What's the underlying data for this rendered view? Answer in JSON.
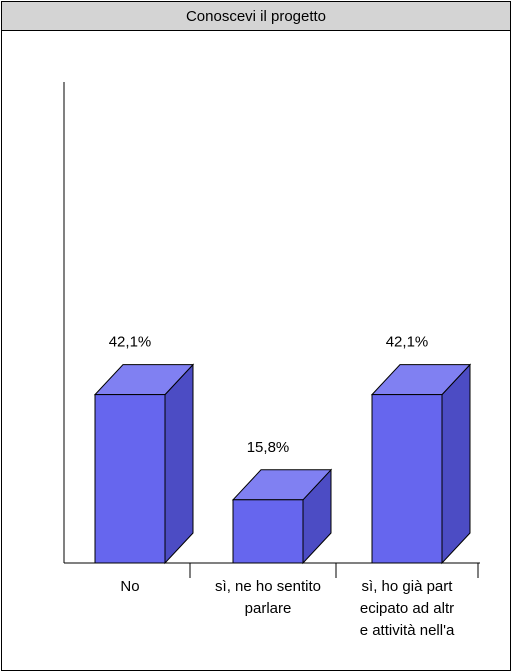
{
  "chart_data": {
    "type": "bar",
    "title": "Conoscevi il progetto",
    "categories": [
      [
        "No"
      ],
      [
        "sì, ne ho sentito",
        "parlare"
      ],
      [
        "sì, ho già part",
        "ecipato ad altr",
        "e attività nell'a"
      ]
    ],
    "values": [
      42.1,
      15.8,
      42.1
    ],
    "value_labels": [
      "42,1%",
      "15,8%",
      "42,1%"
    ],
    "bar_color": "#6666ee",
    "bar_side_color": "#4c4cc4",
    "bar_top_color": "#8080f2",
    "ylim": [
      0,
      100
    ],
    "grid": false,
    "legend": "none"
  }
}
